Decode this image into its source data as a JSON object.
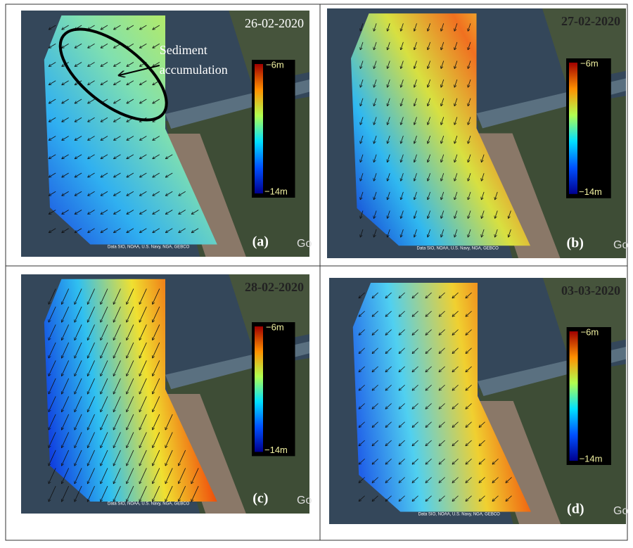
{
  "panels": [
    {
      "date": "26-02-2020",
      "label": "(a)",
      "colorbar": {
        "top": "−6m",
        "bottom": "−14m"
      },
      "attribution": "Data SIO, NOAA, U.S. Navy, NGA, GEBCO",
      "logo": "Go",
      "annotation": "Sediment accumulation"
    },
    {
      "date": "27-02-2020",
      "label": "(b)",
      "colorbar": {
        "top": "−6m",
        "bottom": "−14m"
      },
      "attribution": "Data SIO, NOAA, U.S. Navy, NGA, GEBCO",
      "logo": "Go"
    },
    {
      "date": "28-02-2020",
      "label": "(c)",
      "colorbar": {
        "top": "−6m",
        "bottom": "−14m"
      },
      "attribution": "Data SIO, NOAA, U.S. Navy, NGA, GEBCO",
      "logo": "Go"
    },
    {
      "date": "03-03-2020",
      "label": "(d)",
      "colorbar": {
        "top": "−6m",
        "bottom": "−14m"
      },
      "attribution": "Data SIO, NOAA, U.S. Navy, NGA, GEBCO",
      "logo": "Go"
    }
  ]
}
